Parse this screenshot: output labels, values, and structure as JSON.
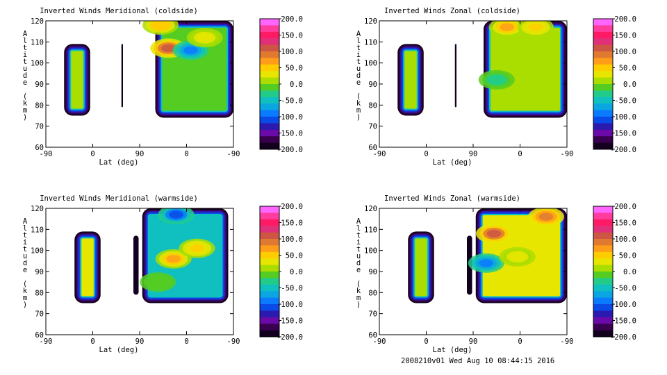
{
  "colorbar": {
    "labels": [
      "200.0",
      "150.0",
      "100.0",
      "50.0",
      "0.0",
      "-50.0",
      "-100.0",
      "-150.0",
      "-200.0"
    ],
    "colors": [
      "#ff66ff",
      "#ff3d9e",
      "#ff1a66",
      "#e0307a",
      "#cc5544",
      "#e07a30",
      "#ff9d1a",
      "#ffcc00",
      "#e6e600",
      "#aadd00",
      "#55cc22",
      "#22cc88",
      "#10bfc0",
      "#0aa6e0",
      "#0a7aff",
      "#0a4ae6",
      "#2a1ab0",
      "#6a0aa8",
      "#3a0050",
      "#12001e"
    ]
  },
  "chart_data": [
    {
      "type": "heatmap",
      "title": "Inverted Winds Meridional (coldside)",
      "xlabel": "Lat (deg)",
      "ylabel": "Altitude (km)",
      "xticks": [
        "-90",
        "0",
        "90",
        "0",
        "-90"
      ],
      "yticks": [
        "60",
        "70",
        "80",
        "90",
        "100",
        "110",
        "120"
      ],
      "ylim": [
        60,
        120
      ],
      "colorbar_range": [
        -200,
        200
      ],
      "regions": [
        {
          "x": [
            -55,
            -5
          ],
          "y": [
            75,
            109
          ],
          "value": 10
        },
        {
          "x": [
            55,
            58
          ],
          "y": [
            79,
            109
          ],
          "value": -200
        },
        {
          "x": [
            120,
            270
          ],
          "y": [
            74,
            120
          ],
          "value": 0
        }
      ],
      "features": [
        {
          "x": 145,
          "y": 107,
          "value": 110
        },
        {
          "x": 188,
          "y": 106,
          "value": -90
        },
        {
          "x": 130,
          "y": 118,
          "value": 60
        },
        {
          "x": 215,
          "y": 112,
          "value": 30
        }
      ]
    },
    {
      "type": "heatmap",
      "title": "Inverted Winds Zonal (coldside)",
      "xlabel": "Lat (deg)",
      "ylabel": "Altitude (km)",
      "xticks": [
        "-90",
        "0",
        "90",
        "0",
        "-90"
      ],
      "yticks": [
        "60",
        "70",
        "80",
        "90",
        "100",
        "110",
        "120"
      ],
      "ylim": [
        60,
        120
      ],
      "colorbar_range": [
        -200,
        200
      ],
      "regions": [
        {
          "x": [
            -55,
            -5
          ],
          "y": [
            75,
            109
          ],
          "value": 10
        },
        {
          "x": [
            55,
            58
          ],
          "y": [
            79,
            109
          ],
          "value": -200
        },
        {
          "x": [
            110,
            270
          ],
          "y": [
            74,
            120
          ],
          "value": 10
        }
      ],
      "features": [
        {
          "x": 155,
          "y": 117,
          "value": 75
        },
        {
          "x": 210,
          "y": 117,
          "value": 50
        },
        {
          "x": 175,
          "y": 104,
          "value": 20
        },
        {
          "x": 135,
          "y": 92,
          "value": -30
        }
      ]
    },
    {
      "type": "heatmap",
      "title": "Inverted Winds Meridional (warmside)",
      "xlabel": "Lat (deg)",
      "ylabel": "Altitude (km)",
      "xticks": [
        "-90",
        "0",
        "90",
        "0",
        "-90"
      ],
      "yticks": [
        "60",
        "70",
        "80",
        "90",
        "100",
        "110",
        "120"
      ],
      "ylim": [
        60,
        120
      ],
      "colorbar_range": [
        -200,
        200
      ],
      "regions": [
        {
          "x": [
            -35,
            15
          ],
          "y": [
            75,
            109
          ],
          "value": 30
        },
        {
          "x": [
            78,
            88
          ],
          "y": [
            79,
            107
          ],
          "value": -200
        },
        {
          "x": [
            95,
            260
          ],
          "y": [
            75,
            120
          ],
          "value": -50
        }
      ],
      "features": [
        {
          "x": 155,
          "y": 96,
          "value": 65
        },
        {
          "x": 200,
          "y": 101,
          "value": 45
        },
        {
          "x": 125,
          "y": 85,
          "value": -10
        },
        {
          "x": 160,
          "y": 117,
          "value": -110
        }
      ]
    },
    {
      "type": "heatmap",
      "title": "Inverted Winds Zonal (warmside)",
      "xlabel": "Lat (deg)",
      "ylabel": "Altitude (km)",
      "xticks": [
        "-90",
        "0",
        "90",
        "0",
        "-90"
      ],
      "yticks": [
        "60",
        "70",
        "80",
        "90",
        "100",
        "110",
        "120"
      ],
      "ylim": [
        60,
        120
      ],
      "colorbar_range": [
        -200,
        200
      ],
      "regions": [
        {
          "x": [
            -35,
            15
          ],
          "y": [
            75,
            109
          ],
          "value": 20
        },
        {
          "x": [
            78,
            88
          ],
          "y": [
            79,
            107
          ],
          "value": -200
        },
        {
          "x": [
            95,
            270
          ],
          "y": [
            75,
            120
          ],
          "value": 30
        }
      ],
      "features": [
        {
          "x": 130,
          "y": 108,
          "value": 110
        },
        {
          "x": 230,
          "y": 116,
          "value": 90
        },
        {
          "x": 115,
          "y": 94,
          "value": -80
        },
        {
          "x": 175,
          "y": 97,
          "value": 40
        }
      ]
    }
  ],
  "footer": "2008210v01 Wed Aug 10 08:44:15 2016"
}
